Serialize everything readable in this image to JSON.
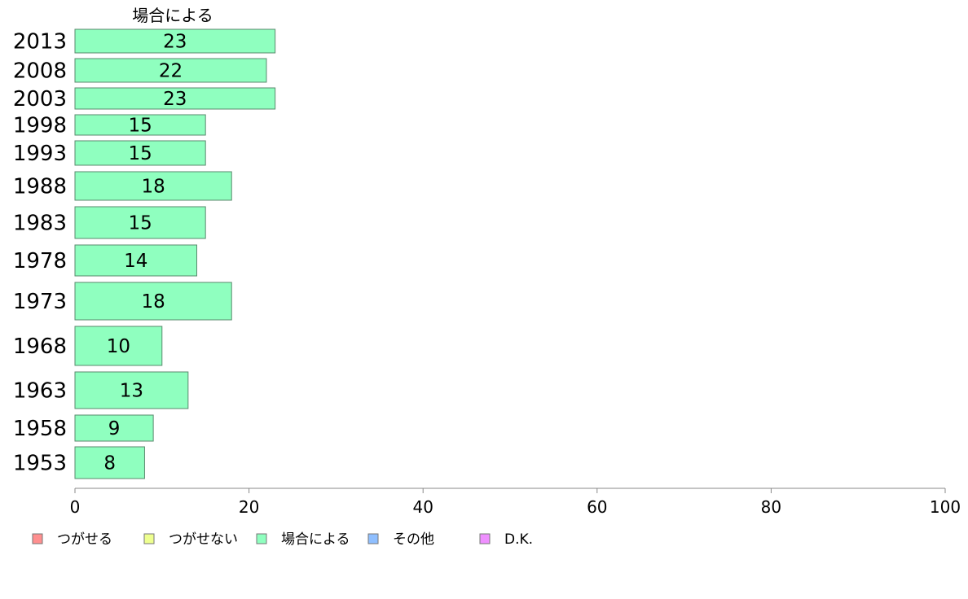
{
  "chart_data": {
    "type": "bar",
    "orientation": "horizontal",
    "title": "場合による",
    "categories": [
      "2013",
      "2008",
      "2003",
      "1998",
      "1993",
      "1988",
      "1983",
      "1978",
      "1973",
      "1968",
      "1963",
      "1958",
      "1953"
    ],
    "values": [
      23,
      22,
      23,
      15,
      15,
      18,
      15,
      14,
      18,
      10,
      13,
      9,
      8
    ],
    "xlim": [
      0,
      100
    ],
    "xticks": [
      "0",
      "20",
      "40",
      "60",
      "80",
      "100"
    ],
    "grid": false,
    "legend_position": "bottom-left",
    "legend": [
      {
        "label": "つがせる",
        "color": "#ff8f8f"
      },
      {
        "label": "つがせない",
        "color": "#eeff8f"
      },
      {
        "label": "場合による",
        "color": "#8fffbf"
      },
      {
        "label": "その他",
        "color": "#8fbfff"
      },
      {
        "label": "D.K.",
        "color": "#ef8fff"
      }
    ],
    "bar_color": "#8fffbf"
  }
}
